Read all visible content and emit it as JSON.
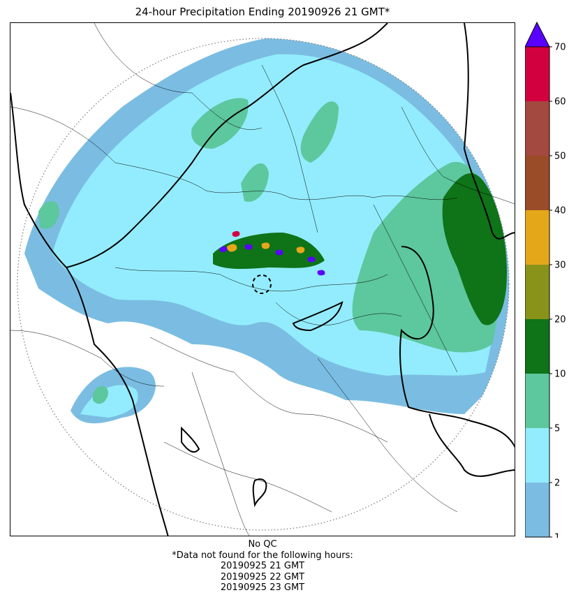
{
  "title": "24-hour Precipitation Ending 20190926 21 GMT*",
  "legend": {
    "ticks": [
      "1",
      "2",
      "5",
      "10",
      "20",
      "30",
      "40",
      "50",
      "60",
      "70"
    ],
    "colors": [
      "#7bbde2",
      "#93ecfd",
      "#5dc79e",
      "#0f7318",
      "#8a9319",
      "#e5a71a",
      "#9a4b27",
      "#a4493f",
      "#d3003f"
    ],
    "extend_color": "#5a00ff"
  },
  "footnote": {
    "line1": "No QC",
    "line2": "*Data not found for the following hours:",
    "hours": [
      "20190925 21 GMT",
      "20190925 22 GMT",
      "20190925 23 GMT"
    ]
  }
}
